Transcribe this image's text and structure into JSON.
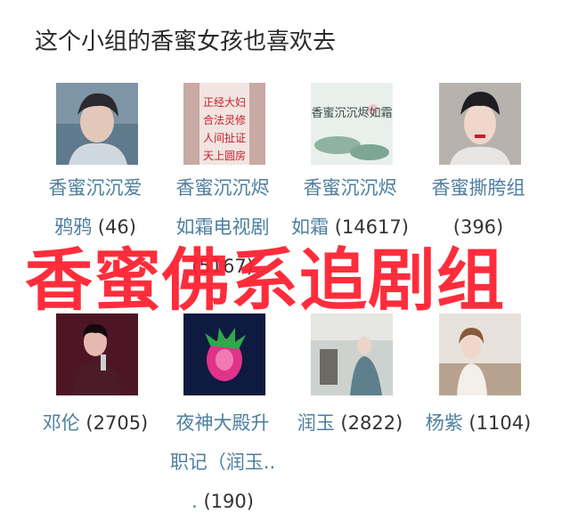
{
  "section": {
    "heading": "这个小组的香蜜女孩也喜欢去"
  },
  "groups": [
    {
      "line1": "香蜜沉沉爱",
      "line2": "鸦鸦",
      "count": "(46)"
    },
    {
      "line1": "香蜜沉沉烬",
      "line2": "如霜电视剧",
      "line3": "(5167)"
    },
    {
      "line1": "香蜜沉沉烬",
      "line2": "如霜",
      "count": "(14617)"
    },
    {
      "line1": "香蜜撕胯组",
      "count": "(396)"
    },
    {
      "line1": "邓伦",
      "count": "(2705)"
    },
    {
      "line1": "夜神大殿升",
      "line2": "职记（润玉..",
      "line3": ".",
      "count": "(190)"
    },
    {
      "line1": "润玉",
      "count": "(2822)"
    },
    {
      "line1": "杨紫",
      "count": "(1104)"
    }
  ],
  "thumb_text": {
    "poster2": [
      "正经大妇",
      "合法灵修",
      "人间扯证",
      "天上圆房"
    ],
    "poster3": "香蜜沉沉烬如霜"
  },
  "overlay": {
    "text": "香蜜佛系追剧组"
  },
  "colors": {
    "link": "#4d7fa0",
    "overlay": "#ff1e2e",
    "text": "#333333"
  }
}
